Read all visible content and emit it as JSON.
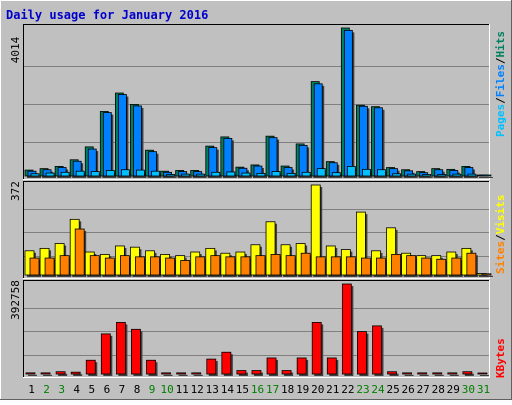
{
  "colors": {
    "frame": "#c0c0c0",
    "plot_bg": "#c0c0c0",
    "title": "#0000cc",
    "pages": "#00c0ff",
    "files": "#0080ff",
    "hits": "#008060",
    "sites": "#ff8000",
    "visits": "#ffff00",
    "kbytes": "#ff0000",
    "weekend_label": "#008000",
    "weekday_label": "#000000"
  },
  "chart_data": {
    "type": "bar",
    "title": "Daily usage for January 2016",
    "days": [
      "1",
      "2",
      "3",
      "4",
      "5",
      "6",
      "7",
      "8",
      "9",
      "10",
      "11",
      "12",
      "13",
      "14",
      "15",
      "16",
      "17",
      "18",
      "19",
      "20",
      "21",
      "22",
      "23",
      "24",
      "25",
      "26",
      "27",
      "28",
      "29",
      "30",
      "31"
    ],
    "weekend_days": [
      "2",
      "3",
      "9",
      "10",
      "16",
      "17",
      "23",
      "24",
      "30",
      "31"
    ],
    "legend_hits": {
      "pages": "Pages",
      "files": "Files",
      "hits": "Hits",
      "sep": "/"
    },
    "legend_visits": {
      "sites": "Sites",
      "visits": "Visits",
      "sep": "/"
    },
    "legend_kbytes": "KBytes",
    "hits_panel": {
      "max_label": "4014",
      "ymax": 4014,
      "series": [
        {
          "name": "Hits",
          "values": [
            160,
            200,
            260,
            440,
            790,
            1750,
            2250,
            1940,
            700,
            130,
            150,
            150,
            810,
            1060,
            240,
            300,
            1080,
            270,
            870,
            2560,
            390,
            4014,
            1920,
            1880,
            230,
            170,
            120,
            200,
            180,
            260,
            4
          ]
        },
        {
          "name": "Files",
          "values": [
            130,
            170,
            230,
            400,
            730,
            1720,
            2210,
            1900,
            660,
            100,
            120,
            120,
            770,
            1020,
            210,
            270,
            1040,
            230,
            830,
            2500,
            360,
            3950,
            1890,
            1850,
            200,
            140,
            90,
            170,
            150,
            230,
            3
          ]
        },
        {
          "name": "Pages",
          "values": [
            60,
            80,
            100,
            130,
            120,
            150,
            170,
            160,
            130,
            40,
            50,
            50,
            100,
            110,
            80,
            70,
            120,
            70,
            100,
            200,
            90,
            260,
            180,
            170,
            60,
            50,
            40,
            40,
            50,
            50,
            1
          ]
        }
      ]
    },
    "visits_panel": {
      "max_label": "372",
      "ymax": 372,
      "series": [
        {
          "name": "Visits",
          "values": [
            100,
            110,
            130,
            230,
            95,
            85,
            120,
            115,
            100,
            85,
            80,
            95,
            110,
            90,
            95,
            125,
            220,
            125,
            130,
            372,
            120,
            105,
            260,
            100,
            195,
            90,
            80,
            80,
            95,
            110,
            6
          ]
        },
        {
          "name": "Sites",
          "values": [
            70,
            70,
            80,
            190,
            80,
            70,
            80,
            75,
            75,
            70,
            60,
            75,
            80,
            75,
            75,
            80,
            85,
            80,
            90,
            75,
            75,
            75,
            70,
            70,
            85,
            80,
            70,
            65,
            70,
            90,
            5
          ]
        }
      ]
    },
    "kbytes_panel": {
      "max_label": "392758",
      "ymax": 392758,
      "series": [
        {
          "name": "KBytes",
          "values": [
            5000,
            5000,
            10000,
            8000,
            60000,
            175000,
            225000,
            195000,
            60000,
            5000,
            5000,
            5000,
            65000,
            95000,
            15000,
            15000,
            70000,
            15000,
            70000,
            225000,
            70000,
            392758,
            185000,
            210000,
            10000,
            5000,
            5000,
            5000,
            5000,
            10000,
            200
          ]
        }
      ]
    }
  }
}
